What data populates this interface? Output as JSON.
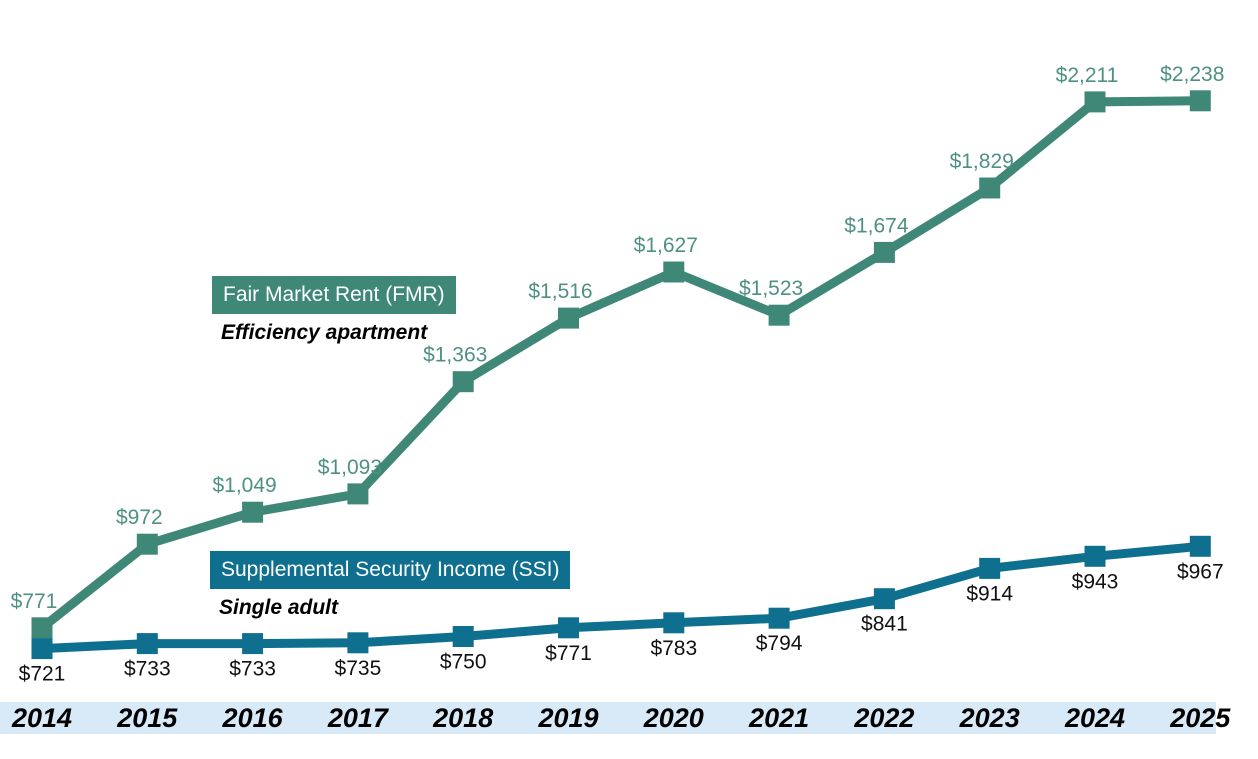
{
  "chart_data": {
    "type": "line",
    "categories": [
      "2014",
      "2015",
      "2016",
      "2017",
      "2018",
      "2019",
      "2020",
      "2021",
      "2022",
      "2023",
      "2024",
      "2025"
    ],
    "series": [
      {
        "id": "fmr",
        "name": "Fair Market Rent (FMR)",
        "subtitle": "Efficiency apartment",
        "values": [
          771,
          972,
          1049,
          1093,
          1363,
          1516,
          1627,
          1523,
          1674,
          1829,
          2211,
          2238
        ],
        "value_labels": [
          "$771",
          "$972",
          "$1,049",
          "$1,093",
          "$1,363",
          "$1,516",
          "$1,627",
          "$1,523",
          "$1,674",
          "$1,829",
          "$2,211",
          "$2,238"
        ],
        "line_color": "#3F8878",
        "label_color": "#4E9184",
        "label_position": "above"
      },
      {
        "id": "ssi",
        "name": "Supplemental Security Income (SSI)",
        "subtitle": "Single adult",
        "values": [
          721,
          733,
          733,
          735,
          750,
          771,
          783,
          794,
          841,
          914,
          943,
          967
        ],
        "value_labels": [
          "$721",
          "$733",
          "$733",
          "$735",
          "$750",
          "$771",
          "$783",
          "$794",
          "$841",
          "$914",
          "$943",
          "$967"
        ],
        "line_color": "#0F6F8E",
        "label_color": "#111111",
        "label_position": "below"
      }
    ],
    "xlabel": "",
    "ylabel": "",
    "grid": false,
    "legend_position": "inline annotation boxes on plot",
    "x_axis": {
      "band_color": "#D8EAF7",
      "label_color": "#000000"
    },
    "y_axis": {
      "visible": false,
      "approx_range": [
        650,
        2350
      ]
    }
  }
}
